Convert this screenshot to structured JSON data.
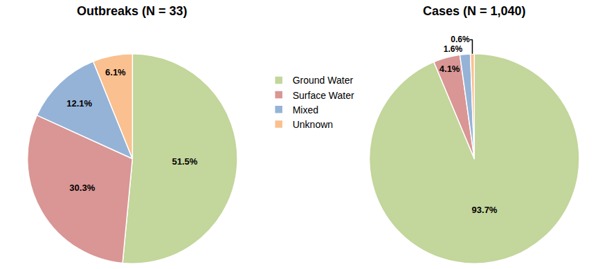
{
  "chart_data": [
    {
      "type": "pie",
      "title": "Outbreaks (N = 33)",
      "categories": [
        "Ground Water",
        "Surface Water",
        "Mixed",
        "Unknown"
      ],
      "values": [
        51.5,
        30.3,
        12.1,
        6.1
      ],
      "value_labels": [
        "51.5%",
        "30.3%",
        "12.1%",
        "6.1%"
      ],
      "colors": [
        "#c3d69b",
        "#d99694",
        "#95b3d7",
        "#fac090"
      ],
      "data_labels": true,
      "legend": "center"
    },
    {
      "type": "pie",
      "title": "Cases (N = 1,040)",
      "categories": [
        "Ground Water",
        "Surface Water",
        "Mixed",
        "Unknown"
      ],
      "values": [
        93.7,
        4.1,
        1.6,
        0.6
      ],
      "value_labels": [
        "93.7%",
        "4.1%",
        "1.6%",
        "0.6%"
      ],
      "colors": [
        "#c3d69b",
        "#d99694",
        "#95b3d7",
        "#fac090"
      ],
      "data_labels": true,
      "legend": "center"
    }
  ]
}
